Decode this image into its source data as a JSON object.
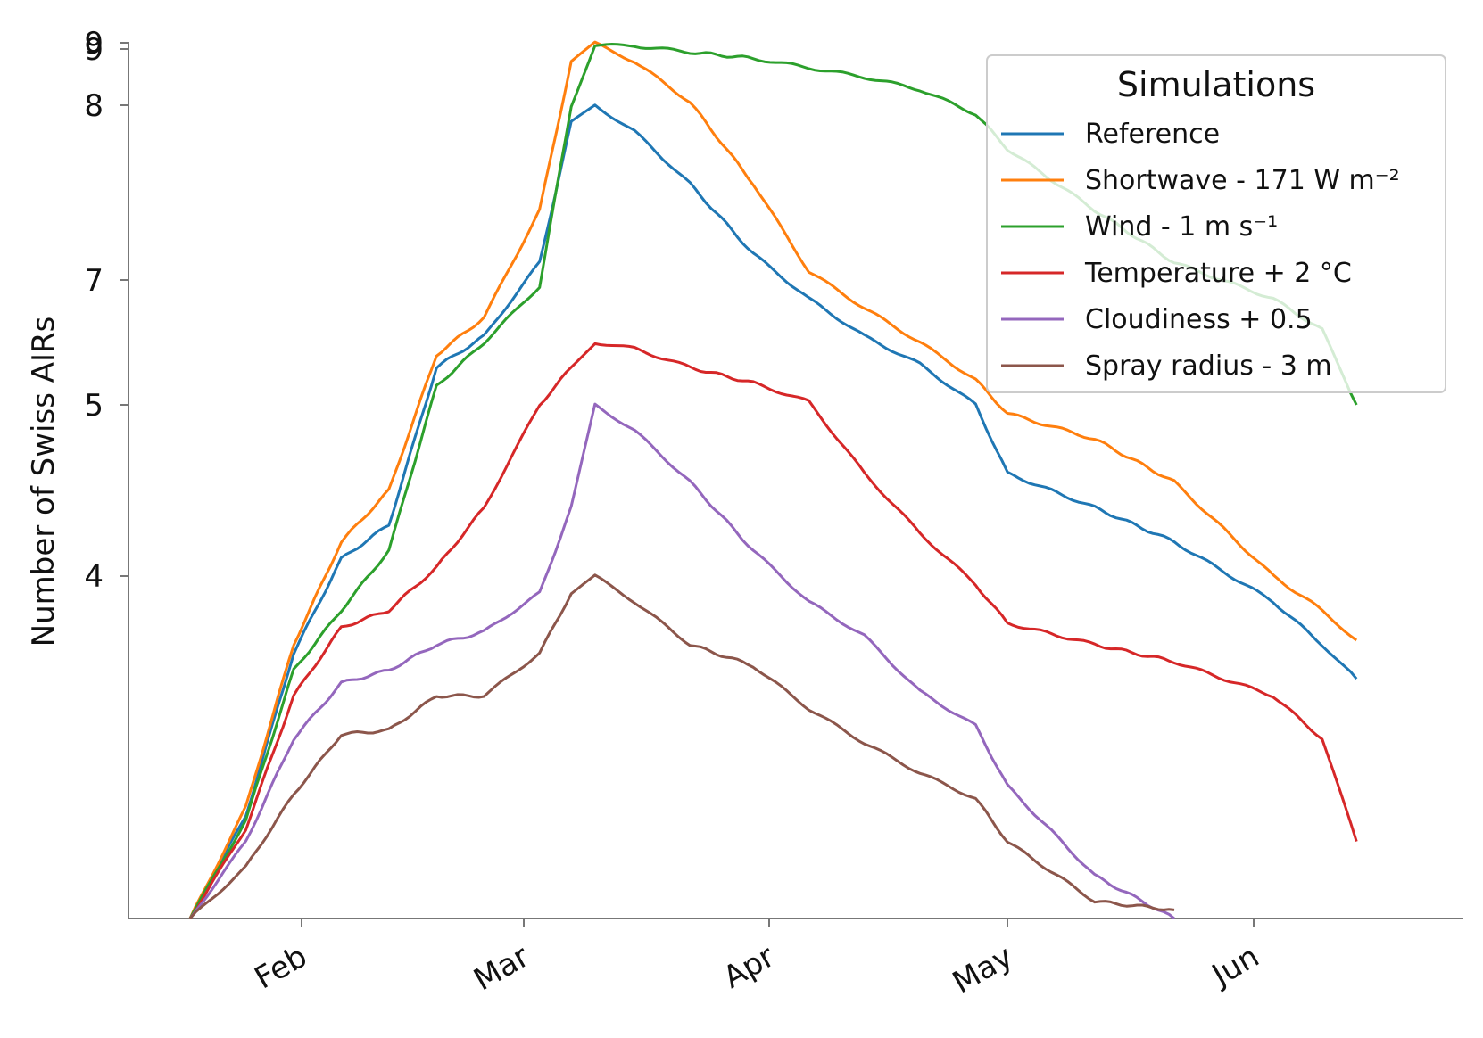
{
  "chart_data": {
    "type": "line",
    "title": "",
    "xlabel": "",
    "ylabel": "Number of Swiss AIRs",
    "x_ticks": [
      "Feb",
      "Mar",
      "Apr",
      "May",
      "Jun"
    ],
    "y_ticks": [
      "4",
      "5",
      "7",
      "8",
      "9",
      "9"
    ],
    "grid": false,
    "legend": {
      "title": "Simulations",
      "position": "top-right"
    },
    "series": [
      {
        "name": "Reference",
        "color": "#1f77b4",
        "x": [
          "2019-01-18",
          "2019-01-25",
          "2019-01-31",
          "2019-02-06",
          "2019-02-12",
          "2019-02-18",
          "2019-02-24",
          "2019-03-03",
          "2019-03-07",
          "2019-03-10",
          "2019-03-15",
          "2019-03-22",
          "2019-03-30",
          "2019-04-06",
          "2019-04-13",
          "2019-04-20",
          "2019-04-27",
          "2019-05-01",
          "2019-05-12",
          "2019-05-22",
          "2019-06-05",
          "2019-06-15",
          "2019-06-22"
        ],
        "y": [
          0,
          1.2,
          3.1,
          4.1,
          4.3,
          5.6,
          6.1,
          7.1,
          7.9,
          8.0,
          7.85,
          7.55,
          7.15,
          6.7,
          6.1,
          5.65,
          5.0,
          4.6,
          4.4,
          4.2,
          3.7,
          3.2,
          2.8
        ]
      },
      {
        "name": "Shortwave - 171 W m⁻²",
        "color": "#ff7f0e",
        "x": [
          "2019-01-18",
          "2019-01-25",
          "2019-01-31",
          "2019-02-06",
          "2019-02-12",
          "2019-02-18",
          "2019-02-24",
          "2019-03-03",
          "2019-03-07",
          "2019-03-10",
          "2019-03-15",
          "2019-03-22",
          "2019-03-30",
          "2019-04-06",
          "2019-04-13",
          "2019-04-20",
          "2019-04-27",
          "2019-05-01",
          "2019-05-12",
          "2019-05-22",
          "2019-06-05",
          "2019-06-15",
          "2019-06-22"
        ],
        "y": [
          0,
          1.3,
          3.2,
          4.2,
          4.5,
          5.8,
          6.4,
          7.4,
          8.7,
          8.99,
          8.7,
          8.05,
          7.55,
          7.05,
          6.55,
          6.0,
          5.4,
          4.95,
          4.8,
          4.55,
          4.0,
          3.6,
          3.25
        ]
      },
      {
        "name": "Wind - 1 m s⁻¹",
        "color": "#2ca02c",
        "x": [
          "2019-01-18",
          "2019-01-25",
          "2019-01-31",
          "2019-02-06",
          "2019-02-12",
          "2019-02-18",
          "2019-02-24",
          "2019-03-03",
          "2019-03-07",
          "2019-03-10",
          "2019-03-15",
          "2019-03-22",
          "2019-03-30",
          "2019-04-06",
          "2019-04-13",
          "2019-04-20",
          "2019-04-27",
          "2019-05-01",
          "2019-05-12",
          "2019-05-22",
          "2019-06-05",
          "2019-06-15",
          "2019-06-22"
        ],
        "y": [
          0,
          1.15,
          2.9,
          3.6,
          4.15,
          5.3,
          6.0,
          6.9,
          8.0,
          8.96,
          8.95,
          8.85,
          8.75,
          8.6,
          8.45,
          8.25,
          7.95,
          7.75,
          7.4,
          7.1,
          6.7,
          6.2,
          5.0
        ]
      },
      {
        "name": "Temperature + 2 °C",
        "color": "#d62728",
        "x": [
          "2019-01-18",
          "2019-01-25",
          "2019-01-31",
          "2019-02-06",
          "2019-02-12",
          "2019-02-18",
          "2019-02-24",
          "2019-03-03",
          "2019-03-07",
          "2019-03-10",
          "2019-03-15",
          "2019-03-22",
          "2019-03-30",
          "2019-04-06",
          "2019-04-13",
          "2019-04-20",
          "2019-04-27",
          "2019-05-01",
          "2019-05-12",
          "2019-05-22",
          "2019-06-05",
          "2019-06-15",
          "2019-06-22"
        ],
        "y": [
          0,
          1.05,
          2.6,
          3.4,
          3.6,
          4.05,
          4.4,
          5.0,
          5.6,
          6.0,
          5.9,
          5.6,
          5.35,
          5.05,
          4.6,
          4.25,
          3.9,
          3.45,
          3.2,
          3.0,
          2.6,
          2.1,
          0.9
        ]
      },
      {
        "name": "Cloudiness + 0.5",
        "color": "#9467bd",
        "x": [
          "2019-01-18",
          "2019-01-25",
          "2019-01-31",
          "2019-02-06",
          "2019-02-12",
          "2019-02-18",
          "2019-02-24",
          "2019-03-03",
          "2019-03-07",
          "2019-03-10",
          "2019-03-15",
          "2019-03-22",
          "2019-03-30",
          "2019-04-06",
          "2019-04-13",
          "2019-04-20",
          "2019-04-27",
          "2019-05-01",
          "2019-05-12",
          "2019-05-22"
        ],
        "y": [
          0,
          0.9,
          2.1,
          2.75,
          2.9,
          3.2,
          3.35,
          3.8,
          4.4,
          5.0,
          4.85,
          4.55,
          4.15,
          3.7,
          3.3,
          2.65,
          2.25,
          1.55,
          0.5,
          0.0
        ]
      },
      {
        "name": "Spray radius - 3 m",
        "color": "#8c564b",
        "x": [
          "2019-01-18",
          "2019-01-25",
          "2019-01-31",
          "2019-02-06",
          "2019-02-12",
          "2019-02-18",
          "2019-02-24",
          "2019-03-03",
          "2019-03-07",
          "2019-03-10",
          "2019-03-15",
          "2019-03-22",
          "2019-03-30",
          "2019-04-06",
          "2019-04-13",
          "2019-04-20",
          "2019-04-27",
          "2019-05-01",
          "2019-05-12",
          "2019-05-22"
        ],
        "y": [
          0,
          0.6,
          1.45,
          2.15,
          2.2,
          2.6,
          2.6,
          3.1,
          3.8,
          4.0,
          3.7,
          3.2,
          2.95,
          2.45,
          2.05,
          1.7,
          1.4,
          0.9,
          0.2,
          0.1
        ]
      }
    ]
  }
}
